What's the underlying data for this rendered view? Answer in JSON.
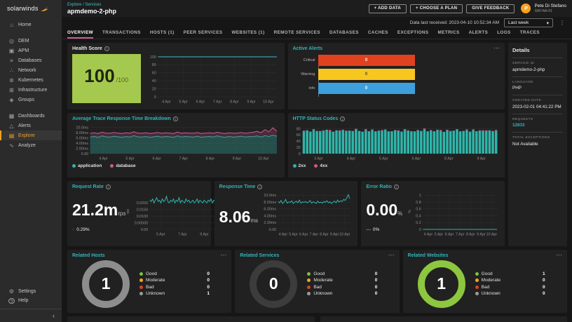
{
  "brand": {
    "logo_text": "solarwinds"
  },
  "icons": {
    "home": "⌂",
    "dem": "◎",
    "apm": "▣",
    "databases": "≡",
    "network": "∴",
    "kubernetes": "⊛",
    "infrastructure": "⊞",
    "groups": "◈",
    "dashboards": "▦",
    "alerts": "△",
    "explore": "▤",
    "analyze": "∿",
    "settings": "⚙",
    "help": "?",
    "collapse": "‹",
    "caret": "▾",
    "kebab": "⋮",
    "more": "⋯",
    "info": "i",
    "up_arrow": "↑",
    "flat_dash": "—"
  },
  "sidebar": {
    "items": [
      {
        "label": "Home"
      },
      {
        "label": "DEM"
      },
      {
        "label": "APM"
      },
      {
        "label": "Databases"
      },
      {
        "label": "Network"
      },
      {
        "label": "Kubernetes"
      },
      {
        "label": "Infrastructure"
      },
      {
        "label": "Groups"
      },
      {
        "label": "Dashboards"
      },
      {
        "label": "Alerts"
      },
      {
        "label": "Explore"
      },
      {
        "label": "Analyze"
      }
    ],
    "footer": [
      {
        "label": "Settings"
      },
      {
        "label": "Help"
      }
    ]
  },
  "header": {
    "breadcrumb": "Explore / Services",
    "title": "apmdemo-2-php",
    "buttons": [
      "+  ADD DATA",
      "+  CHOOSE A PLAN",
      "GIVE FEEDBACK"
    ],
    "user": {
      "name": "Pete Di Stefano",
      "org": "SWI-NA-01",
      "initial": "P"
    }
  },
  "statusbar": {
    "message": "Data last received: 2023-04-10 10:52:34 AM",
    "range": "Last week"
  },
  "tabs": [
    "OVERVIEW",
    "TRANSACTIONS",
    "HOSTS (1)",
    "PEER SERVICES",
    "WEBSITES (1)",
    "REMOTE SERVICES",
    "DATABASES",
    "CACHES",
    "EXCEPTIONS",
    "METRICS",
    "ALERTS",
    "LOGS",
    "TRACES"
  ],
  "cards": {
    "health": {
      "title": "Health Score",
      "score": "100",
      "denom": "/100"
    },
    "active_alerts": {
      "title": "Active Alerts"
    },
    "breakdown": {
      "title": "Average Trace Response Time Breakdown"
    },
    "http": {
      "title": "HTTP Status Codes"
    },
    "request": {
      "title": "Request Rate",
      "value": "21.2m",
      "unit": "rps",
      "delta": "0.29%"
    },
    "response": {
      "title": "Response Time",
      "value": "8.06",
      "unit": "ms"
    },
    "error": {
      "title": "Error Ratio",
      "value": "0.00",
      "unit": "%",
      "delta": "0%"
    }
  },
  "details": {
    "title": "Details",
    "fields": [
      {
        "label": "SERVICE ID",
        "value": "apmdemo-2-php"
      },
      {
        "label": "LANGUAGE",
        "value": "PHP"
      },
      {
        "label": "CREATED DATE",
        "value": "2023-02-01 04:41:22 PM"
      },
      {
        "label": "REQUESTS",
        "value": "12833"
      },
      {
        "label": "TOTAL EXCEPTIONS",
        "value": "Not Available"
      }
    ]
  },
  "chart_data": [
    {
      "name": "health-score-trend",
      "type": "line",
      "title": "Health Score",
      "ylim": [
        0,
        100
      ],
      "yticks": [
        {
          "v": 0,
          "l": "0"
        },
        {
          "v": 20,
          "l": "20"
        },
        {
          "v": 40,
          "l": "40"
        },
        {
          "v": 60,
          "l": "60"
        },
        {
          "v": 80,
          "l": "80"
        },
        {
          "v": 100,
          "l": "100"
        }
      ],
      "xlabels": [
        "4 Apr",
        "5 Apr",
        "6 Apr",
        "7 Apr",
        "8 Apr",
        "9 Apr",
        "10 Apr"
      ],
      "series": [
        {
          "name": "health score",
          "color": "#3fb6c9",
          "values": [
            100,
            100,
            100,
            100,
            100,
            100,
            100,
            100
          ]
        }
      ]
    },
    {
      "name": "active-alerts",
      "type": "bar-h",
      "title": "Active Alerts",
      "rows": [
        {
          "label": "Critical",
          "value": 0,
          "color": "#e0421f",
          "text": "#ffffff"
        },
        {
          "label": "Warning",
          "value": 0,
          "color": "#f7c71f",
          "text": "#4a4a4a"
        },
        {
          "label": "Info",
          "value": 0,
          "color": "#3da0dc",
          "text": "#ffffff"
        }
      ]
    },
    {
      "name": "avg-trace-response-time-breakdown",
      "type": "area",
      "title": "Average Trace Response Time Breakdown",
      "ylim": [
        0,
        10.5
      ],
      "yticks": [
        {
          "v": 0,
          "l": "0.00"
        },
        {
          "v": 2,
          "l": "2.00ms"
        },
        {
          "v": 4,
          "l": "4.00ms"
        },
        {
          "v": 6,
          "l": "6.00ms"
        },
        {
          "v": 8,
          "l": "8.00ms"
        },
        {
          "v": 10,
          "l": "10.0ms"
        }
      ],
      "xlabels": [
        "4 Apr",
        "5 Apr",
        "6 Apr",
        "7 Apr",
        "8 Apr",
        "9 Apr",
        "10 Apr"
      ],
      "legend": [
        {
          "label": "application",
          "color": "#2fb5aa"
        },
        {
          "label": "database",
          "color": "#cf5b93"
        }
      ],
      "series": [
        {
          "name": "application",
          "color": "#2fb5aa",
          "fill": "tozero",
          "fillcolor": "rgba(47,148,140,0.40)",
          "values": [
            6.4,
            6.6,
            6.3,
            6.8,
            6.5,
            6.4,
            6.7,
            6.5,
            6.3,
            6.6,
            6.4,
            6.9,
            6.5,
            6.4,
            6.6,
            6.3,
            6.5,
            6.7,
            6.4,
            6.6,
            6.5,
            6.3,
            6.8,
            6.4,
            6.6,
            6.5,
            6.4,
            6.7,
            6.3,
            6.5,
            6.6,
            6.4,
            6.8,
            6.5,
            6.3,
            6.6,
            6.4,
            6.5,
            6.7,
            6.4,
            6.6,
            6.5,
            6.8,
            6.4,
            6.9,
            6.6,
            7.1,
            6.7
          ]
        },
        {
          "name": "database",
          "color": "#cf5b93",
          "fill": "toprev",
          "fillcolor": "rgba(150,60,95,0.35)",
          "values": [
            7.8,
            8.0,
            7.7,
            8.2,
            7.9,
            7.8,
            8.1,
            7.9,
            7.7,
            8.0,
            7.8,
            8.4,
            7.9,
            7.8,
            8.0,
            7.7,
            7.9,
            8.1,
            7.8,
            8.0,
            7.9,
            7.7,
            8.3,
            7.8,
            8.0,
            7.9,
            7.8,
            8.1,
            7.7,
            7.9,
            8.0,
            7.8,
            8.2,
            7.9,
            7.7,
            8.0,
            7.8,
            7.9,
            8.1,
            7.8,
            8.0,
            8.2,
            8.6,
            8.0,
            9.2,
            8.4,
            9.9,
            8.6
          ]
        }
      ]
    },
    {
      "name": "http-status-codes",
      "type": "bar",
      "title": "HTTP Status Codes",
      "ylim": [
        0,
        88
      ],
      "yticks": [
        {
          "v": 0,
          "l": "0"
        },
        {
          "v": 20,
          "l": "20"
        },
        {
          "v": 40,
          "l": "40"
        },
        {
          "v": 60,
          "l": "60"
        },
        {
          "v": 80,
          "l": "80"
        }
      ],
      "xlabels": [
        "3 Apr",
        "4 Apr",
        "5 Apr",
        "6 Apr",
        "8 Apr",
        "9 Apr"
      ],
      "legend": [
        {
          "label": "2xx",
          "color": "#2fb5aa"
        },
        {
          "label": "4xx",
          "color": "#d94f8e"
        }
      ],
      "series": [
        {
          "name": "2xx",
          "color": "#2fb5aa",
          "values": [
            72,
            75,
            70,
            76,
            73,
            71,
            74,
            77,
            72,
            70,
            75,
            73,
            76,
            71,
            74,
            72,
            78,
            73,
            70,
            75,
            72,
            76,
            71,
            74,
            73,
            77,
            70,
            72,
            75,
            73,
            71,
            76,
            74,
            72,
            70,
            75,
            73,
            77,
            71,
            74,
            72,
            76,
            73,
            70,
            75,
            72,
            74,
            77,
            71,
            73,
            75,
            70,
            76,
            72,
            74,
            73,
            71,
            75,
            72,
            74
          ]
        },
        {
          "name": "4xx",
          "color": "#d94f8e",
          "values": [
            2,
            0,
            1,
            3,
            0,
            2,
            1,
            0,
            4,
            1,
            0,
            2,
            1,
            3,
            0,
            1,
            2,
            0,
            1,
            4,
            0,
            2,
            1,
            0,
            3,
            1,
            2,
            0,
            1,
            2,
            0,
            3,
            1,
            0,
            2,
            1,
            0,
            4,
            1,
            2,
            0,
            1,
            3,
            0,
            2,
            1,
            0,
            2,
            1,
            0,
            3,
            1,
            2,
            0,
            1,
            2,
            4,
            0,
            1,
            2
          ]
        }
      ]
    },
    {
      "name": "request-rate-trend",
      "type": "line",
      "title": "Request Rate",
      "ylim": [
        0,
        0.027
      ],
      "axis_label": "rps",
      "yticks": [
        {
          "v": 0,
          "l": "0.00"
        },
        {
          "v": 0.005,
          "l": "0.00500"
        },
        {
          "v": 0.01,
          "l": "0.0100"
        },
        {
          "v": 0.015,
          "l": "0.0150"
        },
        {
          "v": 0.02,
          "l": "0.0200"
        }
      ],
      "xlabels": [
        "5 Apr",
        "7 Apr",
        "9 Apr"
      ],
      "series": [
        {
          "name": "request rate",
          "color": "#2fb5aa",
          "values": [
            0.022,
            0.021,
            0.023,
            0.02,
            0.022,
            0.024,
            0.021,
            0.022,
            0.02,
            0.023,
            0.021,
            0.022,
            0.025,
            0.021,
            0.02,
            0.022,
            0.021,
            0.023,
            0.02,
            0.022,
            0.021,
            0.024,
            0.02,
            0.022,
            0.021,
            0.02,
            0.023,
            0.021,
            0.022,
            0.02,
            0.021,
            0.022,
            0.02,
            0.021,
            0.023,
            0.02,
            0.022,
            0.021,
            0.02,
            0.022,
            0.021,
            0.02,
            0.022,
            0.021,
            0.023,
            0.02,
            0.022,
            0.021
          ]
        }
      ]
    },
    {
      "name": "response-time-trend",
      "type": "line",
      "title": "Response Time",
      "ylim": [
        0,
        10.5
      ],
      "yticks": [
        {
          "v": 0,
          "l": "0.00"
        },
        {
          "v": 2,
          "l": "2.00ms"
        },
        {
          "v": 4,
          "l": "4.00ms"
        },
        {
          "v": 6,
          "l": "6.00ms"
        },
        {
          "v": 8,
          "l": "8.00ms"
        },
        {
          "v": 10,
          "l": "10.0ms"
        }
      ],
      "xlabels": [
        "4 Apr",
        "5 Apr",
        "6 Apr",
        "7 Apr",
        "8 Apr",
        "9 Apr",
        "10 Apr"
      ],
      "series": [
        {
          "name": "response time",
          "color": "#2fb5aa",
          "values": [
            8.2,
            7.8,
            8.5,
            7.6,
            8.0,
            8.8,
            7.7,
            8.1,
            7.9,
            8.4,
            7.6,
            8.0,
            8.3,
            7.8,
            8.6,
            7.7,
            8.1,
            7.9,
            8.2,
            7.8,
            8.0,
            8.5,
            7.7,
            8.1,
            7.9,
            7.6,
            8.3,
            7.8,
            8.0,
            7.7,
            8.2,
            7.9,
            8.4,
            7.8,
            8.1,
            7.6,
            8.0,
            8.3,
            7.8,
            8.6,
            8.0,
            8.4,
            8.2,
            8.8,
            8.5,
            9.2,
            10.2,
            9.0
          ]
        }
      ]
    },
    {
      "name": "error-ratio-trend",
      "type": "line",
      "title": "Error Ratio",
      "ylim": [
        0,
        1.05
      ],
      "axis_label": "%",
      "yticks": [
        {
          "v": 0,
          "l": "0"
        },
        {
          "v": 0.2,
          "l": "0.2"
        },
        {
          "v": 0.4,
          "l": "0.4"
        },
        {
          "v": 0.6,
          "l": "0.6"
        },
        {
          "v": 0.8,
          "l": "0.8"
        },
        {
          "v": 1,
          "l": "1"
        }
      ],
      "xlabels": [
        "4 Apr",
        "5 Apr",
        "6 Apr",
        "7 Apr",
        "8 Apr",
        "9 Apr",
        "10 Apr"
      ],
      "series": [
        {
          "name": "error ratio",
          "color": "#2fb5aa",
          "values": [
            0,
            0,
            0,
            0,
            0,
            0,
            0,
            0,
            0,
            0,
            0,
            0
          ]
        }
      ]
    },
    {
      "name": "related-hosts",
      "type": "donut",
      "title": "Related Hosts",
      "center": "1",
      "ring_color": "#8d8d8d",
      "legend": [
        {
          "label": "Good",
          "color": "#7ac143",
          "value": "0"
        },
        {
          "label": "Moderate",
          "color": "#f5a81c",
          "value": "0"
        },
        {
          "label": "Bad",
          "color": "#e0421f",
          "value": "0"
        },
        {
          "label": "Unknown",
          "color": "#9b9b9b",
          "value": "1"
        }
      ]
    },
    {
      "name": "related-services",
      "type": "donut",
      "title": "Related Services",
      "center": "0",
      "ring_color": "#3c3c3c",
      "legend": [
        {
          "label": "Good",
          "color": "#7ac143",
          "value": "0"
        },
        {
          "label": "Moderate",
          "color": "#f5a81c",
          "value": "0"
        },
        {
          "label": "Bad",
          "color": "#e0421f",
          "value": "0"
        },
        {
          "label": "Unknown",
          "color": "#9b9b9b",
          "value": "0"
        }
      ]
    },
    {
      "name": "related-websites",
      "type": "donut",
      "title": "Related Websites",
      "center": "1",
      "ring_color": "#8dc63f",
      "legend": [
        {
          "label": "Good",
          "color": "#7ac143",
          "value": "1"
        },
        {
          "label": "Moderate",
          "color": "#f5a81c",
          "value": "0"
        },
        {
          "label": "Bad",
          "color": "#e0421f",
          "value": "0"
        },
        {
          "label": "Unknown",
          "color": "#9b9b9b",
          "value": "0"
        }
      ]
    }
  ]
}
